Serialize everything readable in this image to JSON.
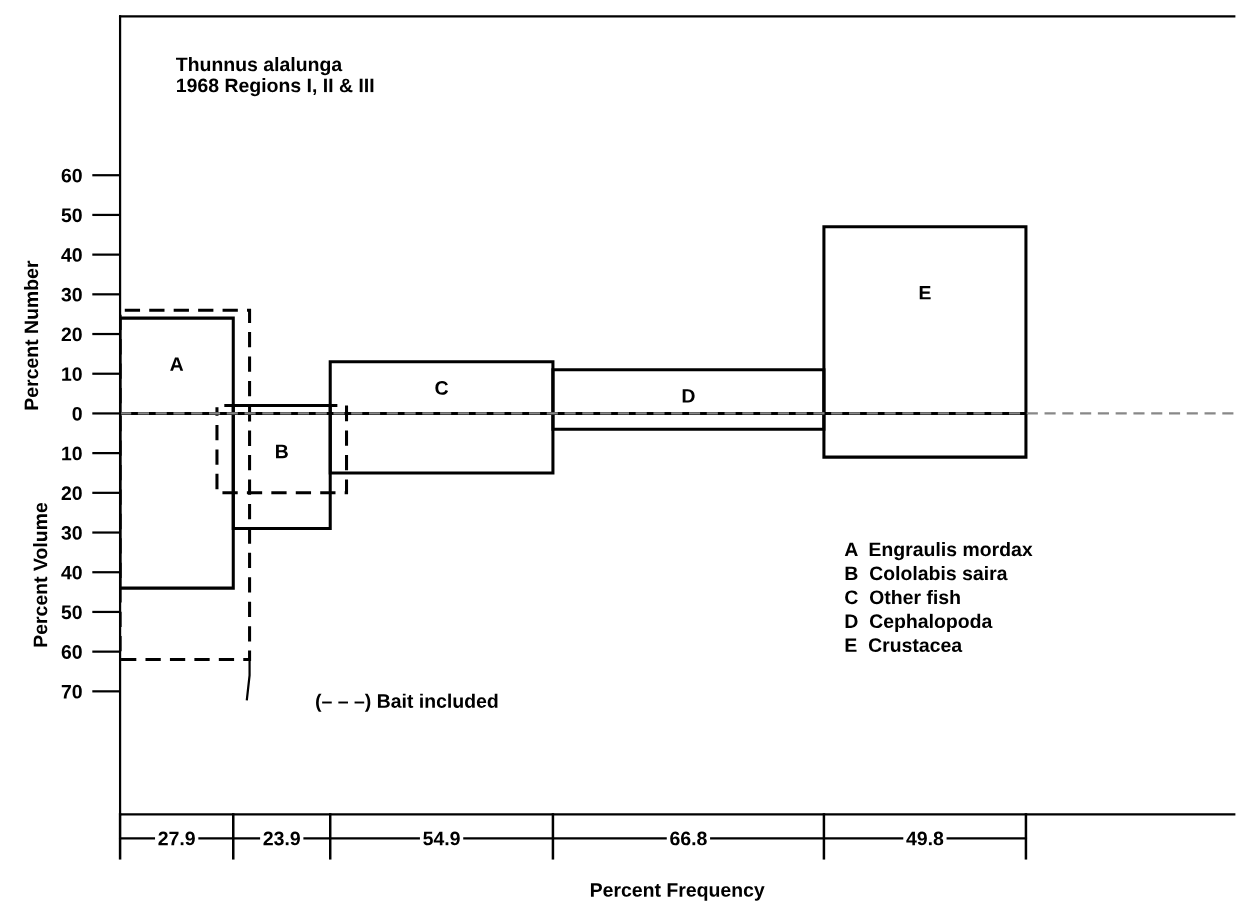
{
  "chart_data": {
    "type": "bar",
    "title": "Thunnus alalunga",
    "subtitle": "1968 Regions I, II & III",
    "ylabel": "Percent Number",
    "xlabel": "Percent Frequency",
    "categories": [
      "27.9",
      "23.9",
      "54.9",
      "66.8",
      "49.8"
    ],
    "series": [
      {
        "color": "#000000",
        "values": [
          24,
          2,
          13,
          11,
          47
        ]
      },
      {
        "color": "#000000",
        "values": [
          -44,
          -29,
          -15,
          -4,
          -11
        ]
      },
      {
        "color": "#000000",
        "values": [
          26,
          2,
          null,
          null,
          null
        ],
        "line_style": "dashed"
      },
      {
        "color": "#000000",
        "values": [
          -62,
          -20,
          null,
          null,
          null
        ],
        "line_style": "dashed"
      }
    ],
    "ylim": [
      -101,
      100
    ],
    "yticks": [
      {
        "value": -70,
        "label": "70"
      },
      {
        "value": -60,
        "label": "60"
      },
      {
        "value": -50,
        "label": "50"
      },
      {
        "value": -40,
        "label": "40"
      },
      {
        "value": -30,
        "label": "30"
      },
      {
        "value": -20,
        "label": "20"
      },
      {
        "value": -10,
        "label": "10"
      },
      0,
      10,
      20,
      30,
      40,
      50,
      60
    ],
    "ref_lines": [
      {
        "axis": "y",
        "value": 0,
        "line_style": "dashed",
        "color": "#888888"
      }
    ],
    "annotations": [
      "Percent Volume",
      "A  Engraulis mordax",
      "B  Cololabis saira",
      "C  Other fish",
      "D  Cephalopoda",
      "E  Crustacea",
      "(– – –) Bait included",
      "A",
      "B",
      "C",
      "D",
      "E"
    ],
    "grid": false
  }
}
